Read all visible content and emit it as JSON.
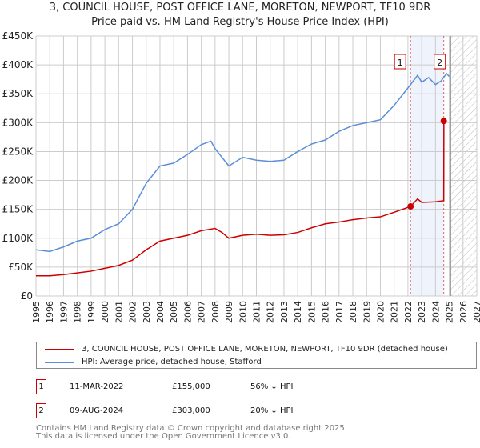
{
  "chart_data": {
    "type": "line",
    "title": "3, COUNCIL HOUSE, POST OFFICE LANE, MORETON, NEWPORT, TF10 9DR",
    "subtitle": "Price paid vs. HM Land Registry's House Price Index (HPI)",
    "xlim": [
      1995,
      2027
    ],
    "ylim": [
      0,
      450000
    ],
    "yticks": [
      {
        "v": 0,
        "label": "£0"
      },
      {
        "v": 50000,
        "label": "£50K"
      },
      {
        "v": 100000,
        "label": "£100K"
      },
      {
        "v": 150000,
        "label": "£150K"
      },
      {
        "v": 200000,
        "label": "£200K"
      },
      {
        "v": 250000,
        "label": "£250K"
      },
      {
        "v": 300000,
        "label": "£300K"
      },
      {
        "v": 350000,
        "label": "£350K"
      },
      {
        "v": 400000,
        "label": "£400K"
      },
      {
        "v": 450000,
        "label": "£450K"
      }
    ],
    "xticks": [
      "1995",
      "1996",
      "1997",
      "1998",
      "1999",
      "2000",
      "2001",
      "2002",
      "2003",
      "2004",
      "2005",
      "2006",
      "2007",
      "2008",
      "2009",
      "2010",
      "2011",
      "2012",
      "2013",
      "2014",
      "2015",
      "2016",
      "2017",
      "2018",
      "2019",
      "2020",
      "2021",
      "2022",
      "2023",
      "2024",
      "2025",
      "2026",
      "2027"
    ],
    "series": [
      {
        "name": "3, COUNCIL HOUSE, POST OFFICE LANE, MORETON, NEWPORT, TF10 9DR (detached house)",
        "color": "#cc0000",
        "x": [
          1995,
          1996,
          1997,
          1998,
          1999,
          2000,
          2001,
          2002,
          2003,
          2004,
          2005,
          2006,
          2007,
          2008,
          2008.5,
          2009,
          2010,
          2011,
          2012,
          2013,
          2014,
          2015,
          2016,
          2017,
          2018,
          2019,
          2020,
          2021,
          2022.19,
          2022.7,
          2023,
          2024,
          2024.6,
          2024.61,
          2024.7
        ],
        "y": [
          35000,
          35000,
          37000,
          40000,
          43000,
          48000,
          53000,
          62000,
          80000,
          95000,
          100000,
          105000,
          113000,
          117000,
          110000,
          100000,
          105000,
          107000,
          105000,
          106000,
          110000,
          118000,
          125000,
          128000,
          132000,
          135000,
          137000,
          145000,
          155000,
          168000,
          162000,
          163000,
          165000,
          303000,
          303000
        ]
      },
      {
        "name": "HPI: Average price, detached house, Stafford",
        "color": "#5b8ed6",
        "x": [
          1995,
          1996,
          1997,
          1998,
          1999,
          2000,
          2001,
          2002,
          2003,
          2004,
          2005,
          2006,
          2007,
          2007.7,
          2008,
          2009,
          2010,
          2011,
          2012,
          2013,
          2014,
          2015,
          2016,
          2017,
          2018,
          2019,
          2020,
          2021,
          2022,
          2022.7,
          2023,
          2023.5,
          2024,
          2024.4,
          2024.8,
          2025
        ],
        "y": [
          80000,
          77000,
          85000,
          95000,
          100000,
          115000,
          125000,
          150000,
          195000,
          225000,
          230000,
          245000,
          262000,
          268000,
          255000,
          225000,
          240000,
          235000,
          233000,
          235000,
          250000,
          263000,
          270000,
          285000,
          295000,
          300000,
          305000,
          330000,
          360000,
          382000,
          370000,
          378000,
          366000,
          372000,
          385000,
          380000
        ]
      }
    ],
    "annotations": [
      {
        "label": "1",
        "x": 2022.19
      },
      {
        "label": "2",
        "x": 2024.6
      }
    ],
    "forecast_start": 2025.1
  },
  "legend": [
    "3, COUNCIL HOUSE, POST OFFICE LANE, MORETON, NEWPORT, TF10 9DR (detached house)",
    "HPI: Average price, detached house, Stafford"
  ],
  "transactions": [
    {
      "n": "1",
      "date": "11-MAR-2022",
      "price": "£155,000",
      "hpi": "56% ↓ HPI"
    },
    {
      "n": "2",
      "date": "09-AUG-2024",
      "price": "£303,000",
      "hpi": "20% ↓ HPI"
    }
  ],
  "footer": [
    "Contains HM Land Registry data © Crown copyright and database right 2025.",
    "This data is licensed under the Open Government Licence v3.0."
  ]
}
